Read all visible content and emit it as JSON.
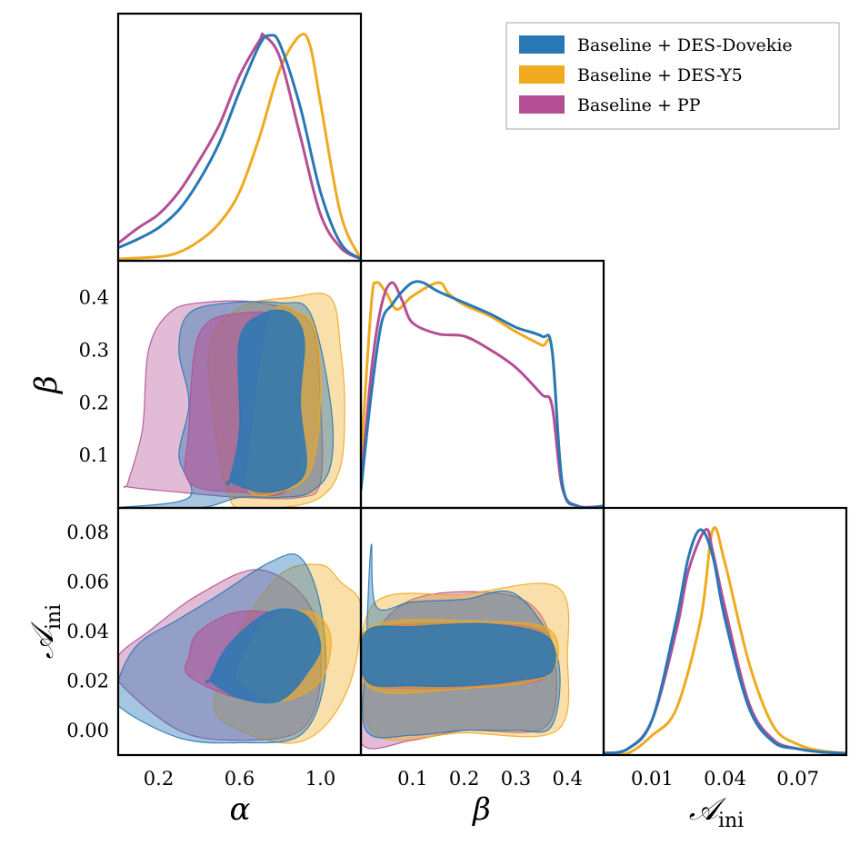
{
  "colors": {
    "dovekie": "#2878b5",
    "y5": "#efaa1f",
    "pp": "#b44f94"
  },
  "legend": {
    "placement": "top-right",
    "entries": [
      "Baseline + DES-Dovekie",
      "Baseline + DES-Y5",
      "Baseline + PP"
    ]
  },
  "axes": {
    "alpha": {
      "label": "α",
      "range": [
        0.0,
        1.2
      ],
      "ticks": [
        "0.2",
        "0.6",
        "1.0"
      ],
      "tick_values": [
        0.2,
        0.6,
        1.0
      ]
    },
    "beta": {
      "label": "β",
      "range": [
        0.0,
        0.47
      ],
      "ticks": [
        "0.1",
        "0.2",
        "0.3",
        "0.4"
      ],
      "tick_values": [
        0.1,
        0.2,
        0.3,
        0.4
      ]
    },
    "aini": {
      "label": "𝒜",
      "sub": "ini",
      "range": [
        -0.01,
        0.09
      ],
      "ticks": [
        "0.01",
        "0.04",
        "0.07"
      ],
      "tick_values": [
        0.01,
        0.04,
        0.07
      ],
      "y_ticks": [
        "0.00",
        "0.02",
        "0.04",
        "0.06",
        "0.08"
      ],
      "y_tick_values": [
        0.0,
        0.02,
        0.04,
        0.06,
        0.08
      ]
    }
  },
  "chart_data": {
    "type": "corner",
    "parameters": [
      "alpha",
      "beta",
      "aini"
    ],
    "series": [
      {
        "name": "Baseline + DES-Dovekie",
        "color_key": "dovekie",
        "alpha_pdf": {
          "x": [
            0.0,
            0.1,
            0.2,
            0.3,
            0.4,
            0.5,
            0.6,
            0.7,
            0.75,
            0.8,
            0.9,
            1.0,
            1.1,
            1.2
          ],
          "y": [
            0.05,
            0.09,
            0.14,
            0.22,
            0.35,
            0.52,
            0.75,
            0.96,
            1.0,
            0.96,
            0.68,
            0.3,
            0.07,
            0.0
          ]
        },
        "beta_pdf": {
          "x": [
            0.0,
            0.02,
            0.04,
            0.06,
            0.08,
            0.1,
            0.12,
            0.15,
            0.2,
            0.25,
            0.3,
            0.35,
            0.37,
            0.39,
            0.42,
            0.47
          ],
          "y": [
            0.07,
            0.5,
            0.82,
            0.9,
            0.96,
            1.0,
            1.0,
            0.96,
            0.91,
            0.86,
            0.8,
            0.76,
            0.7,
            0.1,
            0.0,
            0.0
          ]
        },
        "aini_pdf": {
          "x": [
            -0.01,
            0.0,
            0.01,
            0.02,
            0.025,
            0.03,
            0.035,
            0.04,
            0.05,
            0.06,
            0.07,
            0.08,
            0.09
          ],
          "y": [
            0.0,
            0.02,
            0.15,
            0.6,
            0.88,
            1.0,
            0.88,
            0.6,
            0.2,
            0.05,
            0.02,
            0.005,
            0.0
          ]
        },
        "alpha_beta": {
          "outer": {
            "alpha": [
              0.0,
              0.4,
              0.6,
              0.8,
              0.95,
              1.05,
              1.05,
              0.95,
              0.8,
              0.55,
              0.35,
              0.3,
              0.35,
              0.3,
              0.35
            ],
            "beta": [
              0.0,
              0.0,
              0.02,
              0.02,
              0.03,
              0.08,
              0.2,
              0.37,
              0.39,
              0.39,
              0.37,
              0.3,
              0.2,
              0.1,
              0.02
            ]
          },
          "inner": {
            "alpha": [
              0.55,
              0.7,
              0.85,
              0.93,
              0.9,
              0.92,
              0.85,
              0.72,
              0.6,
              0.6,
              0.55
            ],
            "beta": [
              0.05,
              0.03,
              0.04,
              0.08,
              0.2,
              0.32,
              0.37,
              0.37,
              0.32,
              0.15,
              0.05
            ]
          }
        },
        "alpha_aini": {
          "outer": {
            "alpha": [
              0.0,
              0.3,
              0.6,
              0.9,
              1.02,
              1.0,
              0.9,
              0.75,
              0.5,
              0.3,
              0.1,
              0.0
            ],
            "beta": [
              0.01,
              -0.003,
              -0.005,
              -0.002,
              0.02,
              0.05,
              0.07,
              0.068,
              0.055,
              0.045,
              0.035,
              0.02
            ]
          },
          "inner": {
            "alpha": [
              0.45,
              0.6,
              0.8,
              0.95,
              1.0,
              0.92,
              0.75,
              0.55,
              0.45
            ],
            "beta": [
              0.02,
              0.013,
              0.012,
              0.025,
              0.035,
              0.047,
              0.048,
              0.035,
              0.02
            ]
          }
        },
        "beta_aini": {
          "outer": {
            "alpha": [
              0.01,
              0.1,
              0.2,
              0.3,
              0.37,
              0.38,
              0.3,
              0.2,
              0.1,
              0.03,
              0.02,
              0.01
            ],
            "beta": [
              0.0,
              -0.002,
              0.0,
              0.0,
              0.002,
              0.03,
              0.055,
              0.053,
              0.052,
              0.05,
              0.075,
              0.03
            ]
          },
          "inner": {
            "alpha": [
              0.01,
              0.1,
              0.2,
              0.3,
              0.37,
              0.36,
              0.25,
              0.1,
              0.01
            ],
            "beta": [
              0.02,
              0.018,
              0.018,
              0.02,
              0.024,
              0.038,
              0.043,
              0.042,
              0.04
            ]
          }
        }
      },
      {
        "name": "Baseline + DES-Y5",
        "color_key": "y5",
        "alpha_pdf": {
          "x": [
            0.0,
            0.2,
            0.3,
            0.4,
            0.5,
            0.6,
            0.7,
            0.8,
            0.9,
            0.95,
            1.0,
            1.1,
            1.2
          ],
          "y": [
            0.0,
            0.01,
            0.03,
            0.08,
            0.16,
            0.3,
            0.55,
            0.85,
            1.0,
            0.95,
            0.7,
            0.2,
            0.0
          ]
        },
        "beta_pdf": {
          "x": [
            0.0,
            0.02,
            0.03,
            0.05,
            0.07,
            0.1,
            0.15,
            0.17,
            0.2,
            0.25,
            0.3,
            0.35,
            0.37,
            0.39,
            0.42,
            0.47
          ],
          "y": [
            0.2,
            0.9,
            1.0,
            0.95,
            0.88,
            0.94,
            1.0,
            0.95,
            0.9,
            0.85,
            0.78,
            0.72,
            0.7,
            0.1,
            0.0,
            0.0
          ]
        },
        "aini_pdf": {
          "x": [
            -0.01,
            0.0,
            0.01,
            0.02,
            0.03,
            0.035,
            0.04,
            0.05,
            0.06,
            0.07,
            0.08,
            0.09
          ],
          "y": [
            0.0,
            0.0,
            0.08,
            0.2,
            0.6,
            1.0,
            0.85,
            0.4,
            0.12,
            0.04,
            0.01,
            0.0
          ]
        },
        "alpha_beta": {
          "outer": {
            "alpha": [
              0.6,
              0.8,
              1.0,
              1.1,
              1.12,
              1.1,
              1.05,
              0.85,
              0.6,
              0.45,
              0.5,
              0.55
            ],
            "beta": [
              0.0,
              0.0,
              0.02,
              0.08,
              0.2,
              0.3,
              0.4,
              0.4,
              0.38,
              0.3,
              0.1,
              0.02
            ]
          },
          "inner": {
            "alpha": [
              0.65,
              0.8,
              0.95,
              1.0,
              0.98,
              0.9,
              0.75,
              0.65
            ],
            "beta": [
              0.03,
              0.03,
              0.07,
              0.2,
              0.33,
              0.37,
              0.36,
              0.1
            ]
          }
        },
        "alpha_aini": {
          "outer": {
            "alpha": [
              0.5,
              0.8,
              1.0,
              1.15,
              1.2,
              1.1,
              1.0,
              0.8,
              0.6,
              0.5
            ],
            "beta": [
              0.005,
              -0.005,
              0.0,
              0.02,
              0.05,
              0.06,
              0.067,
              0.063,
              0.04,
              0.02
            ]
          },
          "inner": {
            "alpha": [
              0.6,
              0.8,
              1.0,
              1.05,
              0.95,
              0.75,
              0.62
            ],
            "beta": [
              0.02,
              0.012,
              0.02,
              0.038,
              0.048,
              0.045,
              0.03
            ]
          }
        },
        "beta_aini": {
          "outer": {
            "alpha": [
              0.02,
              0.2,
              0.38,
              0.4,
              0.38,
              0.2,
              0.02
            ],
            "beta": [
              0.0,
              -0.001,
              0.0,
              0.03,
              0.058,
              0.055,
              0.05
            ]
          },
          "inner": {
            "alpha": [
              0.02,
              0.2,
              0.36,
              0.37,
              0.25,
              0.02
            ],
            "beta": [
              0.017,
              0.017,
              0.022,
              0.04,
              0.044,
              0.042
            ]
          }
        }
      },
      {
        "name": "Baseline + PP",
        "color_key": "pp",
        "alpha_pdf": {
          "x": [
            0.0,
            0.1,
            0.2,
            0.3,
            0.4,
            0.5,
            0.6,
            0.7,
            0.72,
            0.8,
            0.9,
            1.0,
            1.1,
            1.2
          ],
          "y": [
            0.07,
            0.14,
            0.2,
            0.3,
            0.44,
            0.6,
            0.82,
            0.98,
            1.0,
            0.9,
            0.55,
            0.2,
            0.05,
            0.0
          ]
        },
        "beta_pdf": {
          "x": [
            0.0,
            0.02,
            0.04,
            0.06,
            0.08,
            0.1,
            0.15,
            0.2,
            0.25,
            0.3,
            0.35,
            0.37,
            0.39,
            0.42,
            0.47
          ],
          "y": [
            0.08,
            0.6,
            0.9,
            1.0,
            0.92,
            0.82,
            0.77,
            0.76,
            0.7,
            0.62,
            0.5,
            0.45,
            0.08,
            0.0,
            0.0
          ]
        },
        "aini_pdf": {
          "x": [
            -0.01,
            0.0,
            0.01,
            0.02,
            0.025,
            0.032,
            0.035,
            0.04,
            0.05,
            0.06,
            0.07,
            0.08,
            0.09
          ],
          "y": [
            0.0,
            0.02,
            0.15,
            0.55,
            0.82,
            1.0,
            0.9,
            0.65,
            0.22,
            0.06,
            0.02,
            0.005,
            0.0
          ]
        },
        "alpha_beta": {
          "outer": {
            "alpha": [
              0.05,
              0.3,
              0.6,
              0.9,
              1.0,
              1.0,
              0.95,
              0.7,
              0.4,
              0.25,
              0.15,
              0.12,
              0.05
            ],
            "beta": [
              0.04,
              0.03,
              0.02,
              0.02,
              0.05,
              0.2,
              0.35,
              0.39,
              0.39,
              0.37,
              0.3,
              0.15,
              0.05
            ]
          },
          "inner": {
            "alpha": [
              0.35,
              0.6,
              0.85,
              0.9,
              0.85,
              0.6,
              0.4,
              0.35
            ],
            "beta": [
              0.05,
              0.03,
              0.04,
              0.2,
              0.35,
              0.37,
              0.33,
              0.15
            ]
          }
        },
        "alpha_aini": {
          "outer": {
            "alpha": [
              0.0,
              0.3,
              0.6,
              0.9,
              1.0,
              0.95,
              0.7,
              0.4,
              0.15,
              0.0
            ],
            "beta": [
              0.02,
              0.0,
              -0.004,
              0.0,
              0.02,
              0.05,
              0.065,
              0.055,
              0.04,
              0.03
            ]
          },
          "inner": {
            "alpha": [
              0.35,
              0.6,
              0.85,
              0.95,
              0.85,
              0.6,
              0.4,
              0.35
            ],
            "beta": [
              0.022,
              0.013,
              0.015,
              0.03,
              0.045,
              0.048,
              0.04,
              0.03
            ]
          }
        },
        "beta_aini": {
          "outer": {
            "alpha": [
              0.0,
              0.1,
              0.2,
              0.36,
              0.37,
              0.3,
              0.1,
              0.01
            ],
            "beta": [
              -0.005,
              -0.004,
              0.0,
              0.002,
              0.035,
              0.054,
              0.053,
              0.03
            ]
          },
          "inner": {
            "alpha": [
              0.01,
              0.1,
              0.25,
              0.36,
              0.35,
              0.2,
              0.01
            ],
            "beta": [
              0.02,
              0.017,
              0.018,
              0.022,
              0.04,
              0.043,
              0.04
            ]
          }
        }
      }
    ]
  }
}
